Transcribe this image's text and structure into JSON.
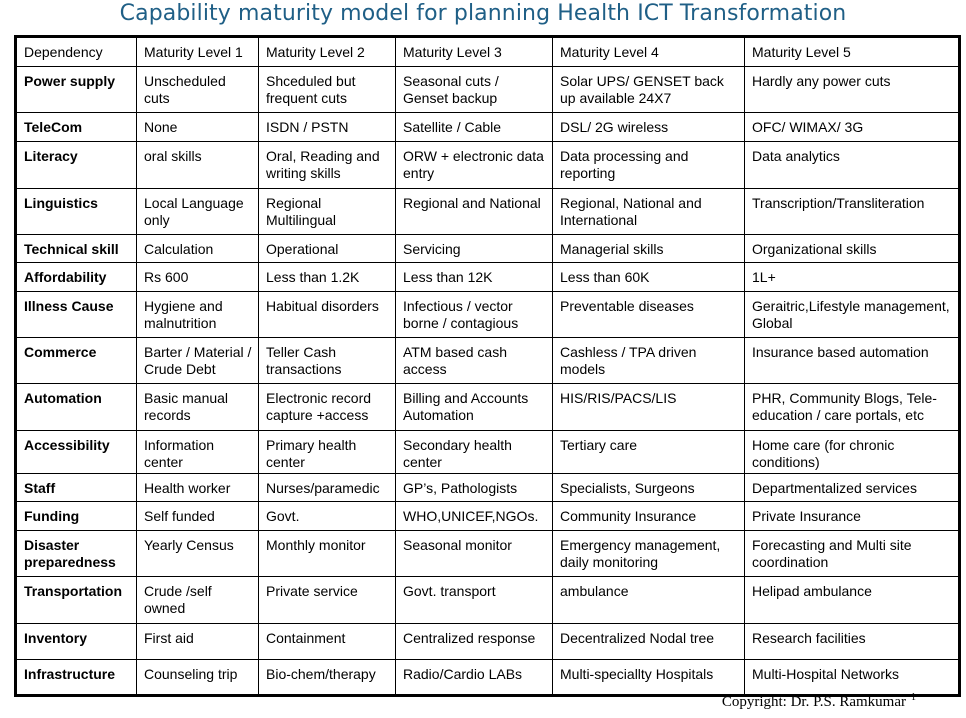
{
  "title": "Capability maturity model for planning Health ICT Transformation",
  "header": [
    "Dependency",
    "Maturity Level 1",
    "Maturity Level 2",
    "Maturity Level  3",
    "Maturity Level 4",
    "Maturity Level  5"
  ],
  "rows": [
    [
      "Power supply",
      "Unscheduled cuts",
      "Shceduled but frequent cuts",
      "Seasonal cuts / Genset backup",
      "Solar UPS/ GENSET back up available 24X7",
      "Hardly any power cuts"
    ],
    [
      "TeleCom",
      "None",
      "ISDN / PSTN",
      "Satellite / Cable",
      "DSL/ 2G wireless",
      "OFC/ WIMAX/ 3G"
    ],
    [
      "Literacy",
      "oral skills",
      "Oral, Reading and writing skills",
      "ORW + electronic data entry",
      "Data processing and reporting",
      "Data analytics"
    ],
    [
      "Linguistics",
      "Local Language only",
      "Regional Multilingual",
      "Regional and National",
      "Regional, National and International",
      "Transcription/Transliteration"
    ],
    [
      "Technical skill",
      "Calculation",
      "Operational",
      "Servicing",
      "Managerial skills",
      "Organizational skills"
    ],
    [
      "Affordability",
      "Rs 600",
      "Less than 1.2K",
      "Less than 12K",
      "Less than 60K",
      "1L+"
    ],
    [
      "Illness Cause",
      "Hygiene and malnutrition",
      "Habitual disorders",
      "Infectious / vector borne / contagious",
      "Preventable diseases",
      "Geraitric,Lifestyle management, Global"
    ],
    [
      "Commerce",
      "Barter / Material / Crude Debt",
      "Teller Cash transactions",
      "ATM based cash access",
      "Cashless / TPA driven models",
      "Insurance based automation"
    ],
    [
      "Automation",
      "Basic manual records",
      "Electronic record capture +access",
      "Billing and Accounts Automation",
      "HIS/RIS/PACS/LIS",
      "PHR, Community Blogs, Tele-education / care portals, etc"
    ],
    [
      "Accessibility",
      "Information center",
      "Primary health center",
      "Secondary health center",
      "Tertiary care",
      "Home care (for chronic conditions)"
    ],
    [
      "Staff",
      "Health worker",
      "Nurses/paramedic",
      "GP’s, Pathologists",
      "Specialists, Surgeons",
      "Departmentalized services"
    ],
    [
      "Funding",
      "Self funded",
      "Govt.",
      "WHO,UNICEF,NGOs.",
      "Community Insurance",
      "Private Insurance"
    ],
    [
      "Disaster preparedness",
      "Yearly Census",
      "Monthly monitor",
      "Seasonal  monitor",
      "Emergency management, daily monitoring",
      "Forecasting and Multi site coordination"
    ],
    [
      "Transportation",
      "Crude /self owned",
      "Private service",
      "Govt. transport",
      "ambulance",
      "Helipad ambulance"
    ],
    [
      "Inventory",
      "First aid",
      "Containment",
      "Centralized response",
      "Decentralized  Nodal tree",
      "Research facilities"
    ],
    [
      "Infrastructure",
      "Counseling trip",
      "Bio-chem/therapy",
      "Radio/Cardio LABs",
      "Multi-speciallty Hospitals",
      "Multi-Hospital Networks"
    ]
  ],
  "footer": {
    "copyright": "Copyright: Dr. P.S. Ramkumar",
    "page": "1"
  }
}
